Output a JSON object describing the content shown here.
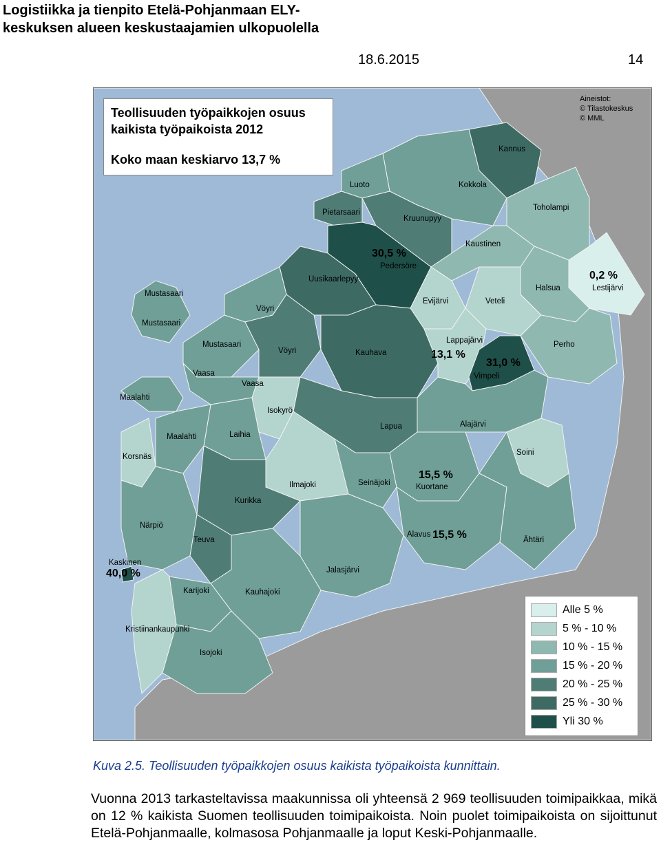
{
  "header": {
    "title": "Logistiikka ja tienpito Etelä-Pohjanmaan ELY-keskuksen alueen keskustaajamien ulkopuolella",
    "date": "18.6.2015",
    "page_number": "14"
  },
  "map": {
    "title_line1": "Teollisuuden työpaikkojen osuus kaikista työpaikoista 2012",
    "title_line2": "Koko maan keskiarvo 13,7 %",
    "sources": [
      "Aineistot:",
      "© Tilastokeskus",
      "© MML"
    ],
    "colors": {
      "sea": "#9fbad6",
      "outside_land": "#9b9b9b",
      "c0": "#d8efec",
      "c1": "#b4d4ce",
      "c2": "#8eb8b0",
      "c3": "#6f9f97",
      "c4": "#4f7d76",
      "c5": "#3d6b64",
      "c6": "#1f4f49"
    },
    "legend": [
      {
        "label": "Alle 5 %",
        "color": "#d8efec"
      },
      {
        "label": "5 % - 10 %",
        "color": "#b4d4ce"
      },
      {
        "label": "10 % - 15 %",
        "color": "#8eb8b0"
      },
      {
        "label": "15 % - 20 %",
        "color": "#6f9f97"
      },
      {
        "label": "20 % - 25 %",
        "color": "#4f7d76"
      },
      {
        "label": "25 % - 30 %",
        "color": "#3d6b64"
      },
      {
        "label": "Yli 30 %",
        "color": "#1f4f49"
      }
    ],
    "municipalities": {
      "kannus": "Kannus",
      "luoto": "Luoto",
      "kokkola": "Kokkola",
      "toholampi": "Toholampi",
      "pietarsaari": "Pietarsaari",
      "kruunupyy": "Kruunupyy",
      "kaustinen": "Kaustinen",
      "pedersore": "Pedersöre",
      "lestijarvi": "Lestijärvi",
      "uusikaarlepyy": "Uusikaarlepyy",
      "halsua": "Halsua",
      "mustasaari_a": "Mustasaari",
      "mustasaari_b": "Mustasaari",
      "voyri_a": "Vöyri",
      "evijarvi": "Evijärvi",
      "veteli": "Veteli",
      "lappajarvi": "Lappajärvi",
      "perho": "Perho",
      "mustasaari_c": "Mustasaari",
      "voyri_b": "Vöyri",
      "kauhava": "Kauhava",
      "vaasa_a": "Vaasa",
      "vimpeli": "Vimpeli",
      "vaasa_b": "Vaasa",
      "maalahti_a": "Maalahti",
      "isokyro": "Isokyrö",
      "lapua": "Lapua",
      "alajarvi": "Alajärvi",
      "maalahti_b": "Maalahti",
      "laihia": "Laihia",
      "soini": "Soini",
      "korsnas": "Korsnäs",
      "ilmajoki": "Ilmajoki",
      "seinajoki": "Seinäjoki",
      "kuortane": "Kuortane",
      "kurikka": "Kurikka",
      "narpio": "Närpiö",
      "alavus": "Alavus",
      "ahtari": "Ähtäri",
      "teuva": "Teuva",
      "kaskinen": "Kaskinen",
      "jalasjarvi": "Jalasjärvi",
      "karijoki": "Karijoki",
      "kauhajoki": "Kauhajoki",
      "kristiinankaupunki": "Kristiinankaupunki",
      "isojoki": "Isojoki"
    },
    "percent_labels": {
      "pedersore": "30,5 %",
      "lestijarvi": "0,2 %",
      "lappajarvi": "13,1 %",
      "vimpeli": "31,0 %",
      "kuortane": "15,5 %",
      "alavus": "15,5 %",
      "kaskinen": "40,0 %"
    }
  },
  "caption": "Kuva 2.5. Teollisuuden työpaikkojen osuus kaikista työpaikoista kunnittain.",
  "body_text": "Vuonna 2013 tarkasteltavissa maakunnissa oli yhteensä 2 969 teollisuuden toimipaikkaa, mikä on 12 % kaikista Suomen teollisuuden toimipaikoista. Noin puolet toimipaikoista on sijoittunut Etelä-Pohjanmaalle, kolmasosa Pohjanmaalle ja loput Keski-Pohjanmaalle."
}
